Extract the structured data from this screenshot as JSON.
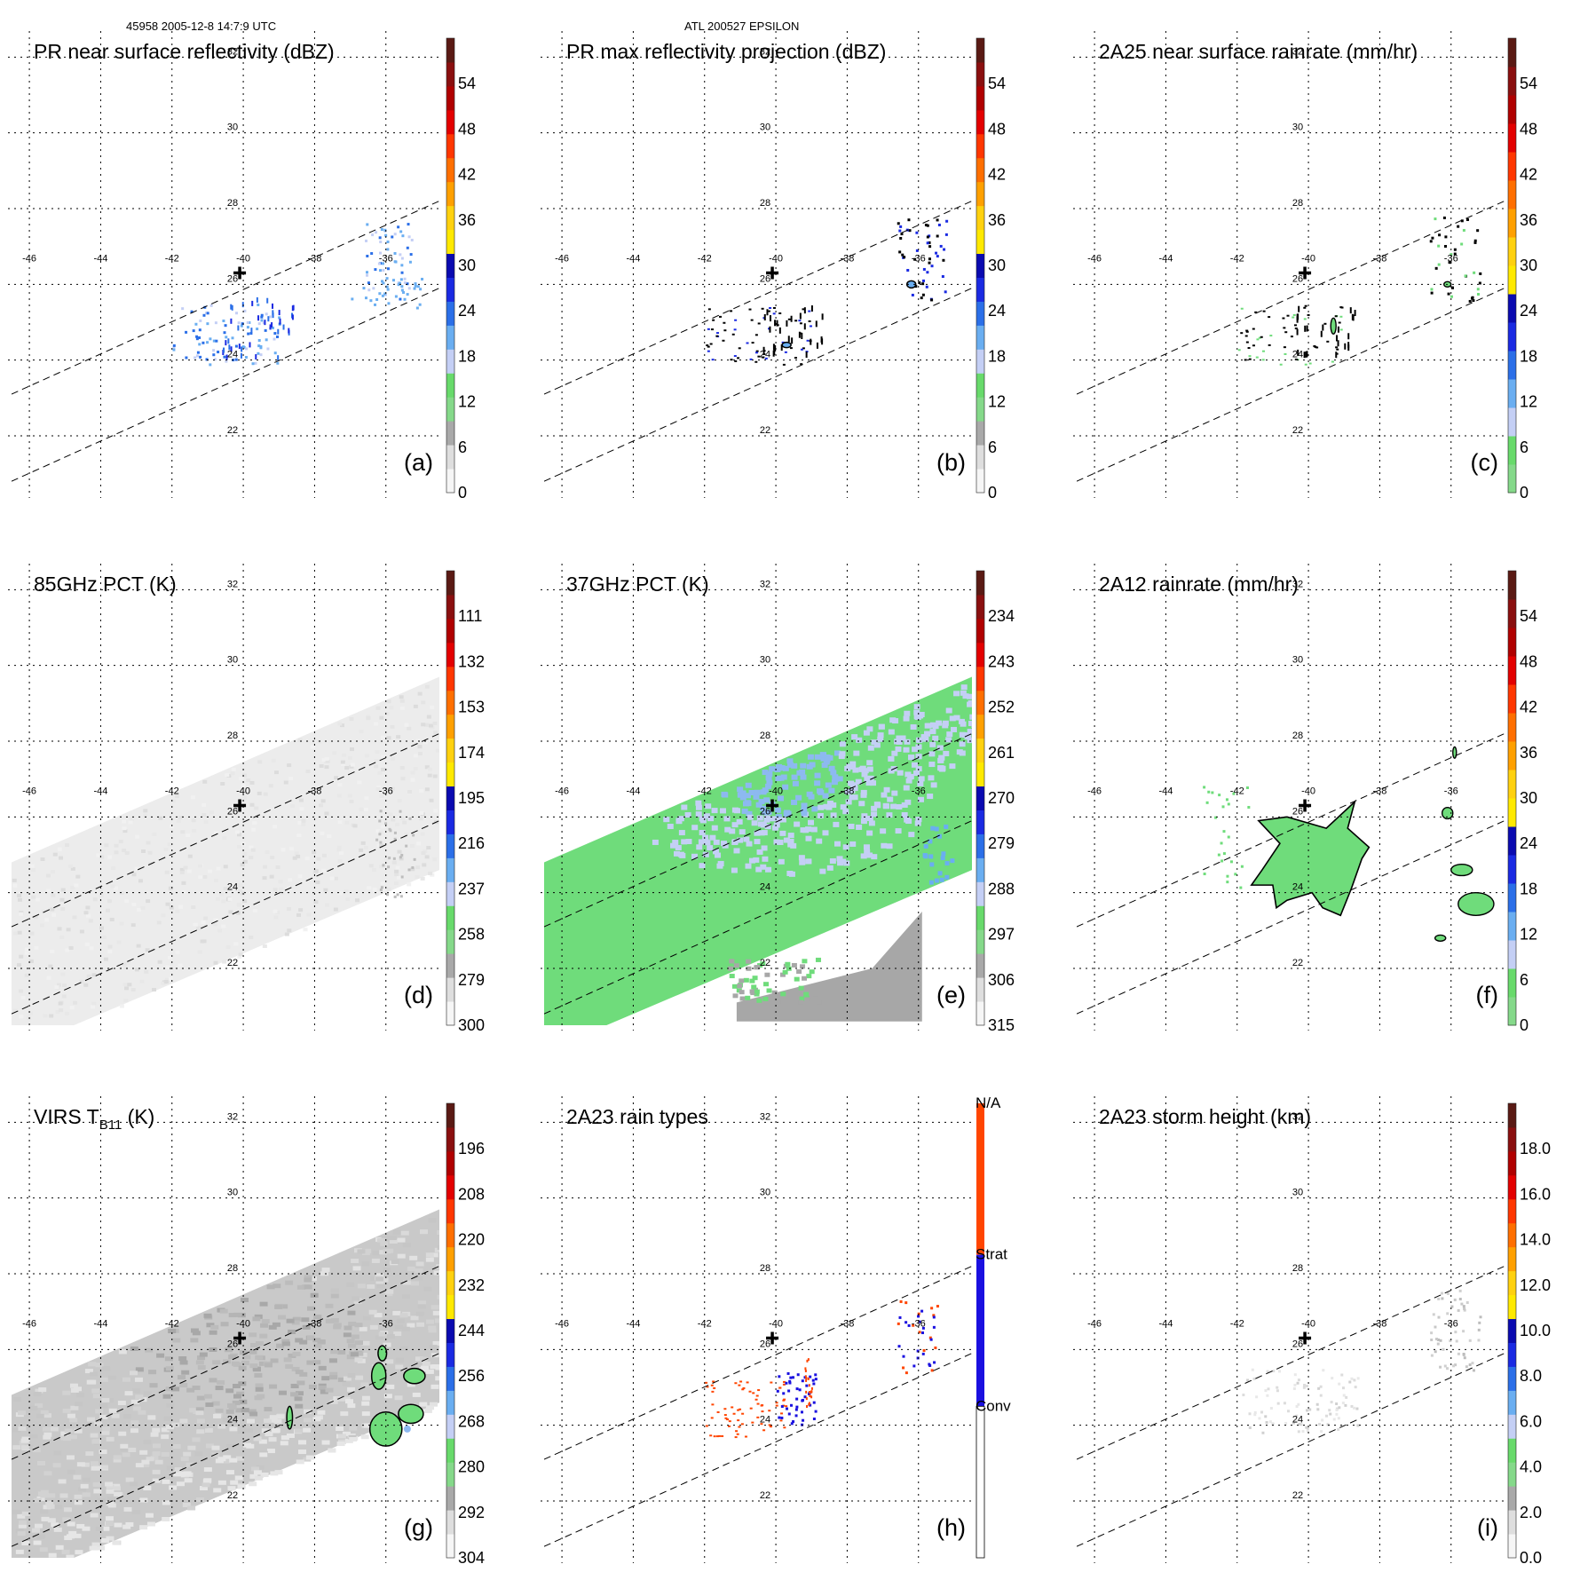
{
  "header": {
    "left": "45958 2005-12-8 14:7:9 UTC",
    "center": "ATL 200527 EPSILON"
  },
  "colors": {
    "scale10": [
      "#f6f6f6",
      "#dedede",
      "#a9a9a9",
      "#85d98a",
      "#68da6b",
      "#c4cff5",
      "#6aaef1",
      "#2b6fe8",
      "#1a2ae2",
      "#0a0ab0",
      "#ffe900",
      "#ffd10f",
      "#ffa000",
      "#ff6f00",
      "#ff3700",
      "#e30000",
      "#b00000",
      "#8a0f0f",
      "#5a1a14"
    ],
    "rain": [
      "#85d98a",
      "#68da6b",
      "#c4cff5",
      "#6aaef1",
      "#2b6fe8",
      "#1a2ae2",
      "#0a0ab0",
      "#ffe900",
      "#ffd10f",
      "#ffa000",
      "#ff6f00",
      "#ff3700",
      "#e30000",
      "#b00000",
      "#8a0f0f",
      "#5a1a14"
    ],
    "raintype": {
      "conv": "#ff4500",
      "strat": "#1a10e0",
      "na": "#ffffff"
    },
    "green": "#6fdc7b",
    "lightblue": "#c4cff5",
    "blue": "#8db9f0",
    "gray": "#a7a7a7"
  },
  "map": {
    "lon_ticks": [
      -46,
      -44,
      -42,
      -40,
      -38,
      -36
    ],
    "lat_ticks": [
      32,
      30,
      28,
      26,
      24,
      22
    ],
    "lon_range": [
      -46.5,
      -34.5
    ],
    "lat_range": [
      20.5,
      32.5
    ],
    "storm_center": {
      "lon": -40.1,
      "lat": 26.3
    },
    "swath_lines": [
      {
        "lat_at_lon_min": 23.1,
        "lat_at_lon_max": 28.2
      },
      {
        "lat_at_lon_min": 20.8,
        "lat_at_lon_max": 25.9
      }
    ],
    "wide_swath": {
      "lat_lower_at_lon_min": 19.8,
      "lat_upper_at_lon_min": 24.8,
      "lat_lower_at_lon_max": 24.6,
      "lat_upper_at_lon_max": 29.7
    }
  },
  "chart_data": [
    {
      "type": "heatmap",
      "panel": "(a)",
      "title": "PR near surface reflectivity (dBZ)",
      "colorbar_ticks": [
        "0",
        "6",
        "12",
        "18",
        "24",
        "30",
        "36",
        "42",
        "48",
        "54"
      ],
      "colorbar_min": 0,
      "colorbar_max": 60,
      "scale": "scale10",
      "style": "pr_near"
    },
    {
      "type": "heatmap",
      "panel": "(b)",
      "title": "PR max reflectivity projection (dBZ)",
      "colorbar_ticks": [
        "0",
        "6",
        "12",
        "18",
        "24",
        "30",
        "36",
        "42",
        "48",
        "54"
      ],
      "colorbar_min": 0,
      "colorbar_max": 60,
      "scale": "scale10",
      "style": "pr_max"
    },
    {
      "type": "heatmap",
      "panel": "(c)",
      "title": "2A25 near surface rainrate (mm/hr)",
      "colorbar_ticks": [
        "0",
        "6",
        "12",
        "18",
        "24",
        "30",
        "36",
        "42",
        "48",
        "54"
      ],
      "colorbar_min": 0,
      "colorbar_max": 60,
      "scale": "rain",
      "style": "rain25"
    },
    {
      "type": "heatmap",
      "panel": "(d)",
      "title": "85GHz PCT (K)",
      "colorbar_ticks": [
        "300",
        "279",
        "258",
        "237",
        "216",
        "195",
        "174",
        "153",
        "132",
        "111"
      ],
      "colorbar_min": 90,
      "colorbar_max": 300,
      "scale": "scale10_rev",
      "style": "pct85"
    },
    {
      "type": "heatmap",
      "panel": "(e)",
      "title": "37GHz PCT (K)",
      "colorbar_ticks": [
        "315",
        "306",
        "297",
        "288",
        "279",
        "270",
        "261",
        "252",
        "243",
        "234"
      ],
      "colorbar_min": 225,
      "colorbar_max": 315,
      "scale": "scale10_rev",
      "style": "pct37"
    },
    {
      "type": "heatmap",
      "panel": "(f)",
      "title": "2A12 rainrate (mm/hr)",
      "colorbar_ticks": [
        "0",
        "6",
        "12",
        "18",
        "24",
        "30",
        "36",
        "42",
        "48",
        "54"
      ],
      "colorbar_min": 0,
      "colorbar_max": 60,
      "scale": "rain",
      "style": "rain12"
    },
    {
      "type": "heatmap",
      "panel": "(g)",
      "title_main": "VIRS T",
      "title_sub": "B11",
      "title_tail": " (K)",
      "colorbar_ticks": [
        "304",
        "292",
        "280",
        "268",
        "256",
        "244",
        "232",
        "220",
        "208",
        "196"
      ],
      "colorbar_min": 184,
      "colorbar_max": 304,
      "scale": "scale10_rev",
      "style": "virs"
    },
    {
      "type": "heatmap",
      "panel": "(h)",
      "title": "2A23 rain types",
      "colorbar_ticks": [
        "N/A",
        "Strat",
        "Conv"
      ],
      "scale": "raintype",
      "style": "raintypes"
    },
    {
      "type": "heatmap",
      "panel": "(i)",
      "title": "2A23 storm height (km)",
      "colorbar_ticks": [
        "0.0",
        "2.0",
        "4.0",
        "6.0",
        "8.0",
        "10.0",
        "12.0",
        "14.0",
        "16.0",
        "18.0"
      ],
      "colorbar_min": 0,
      "colorbar_max": 20,
      "scale": "scale10",
      "style": "height"
    }
  ]
}
